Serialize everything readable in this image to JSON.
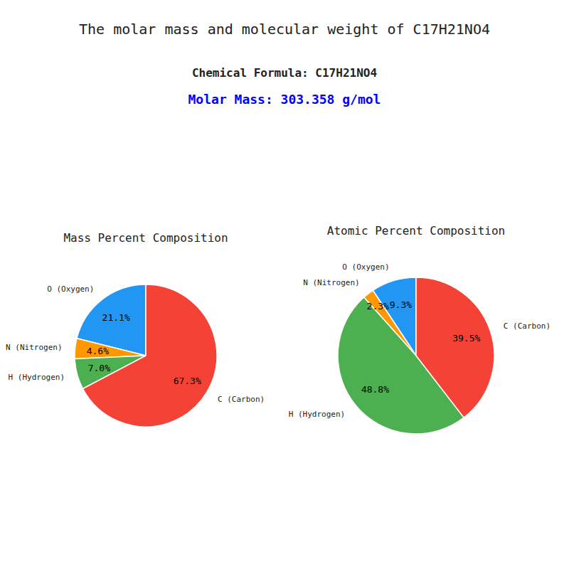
{
  "title": "The molar mass and molecular weight of C17H21NO4",
  "subtitle": "Chemical Formula: C17H21NO4",
  "annotations": [
    {
      "text": "Molar Mass: 303.358 g/mol",
      "color": "blue"
    }
  ],
  "chart_data": [
    {
      "type": "pie",
      "title": "Mass Percent Composition",
      "categories": [
        "O (Oxygen)",
        "N (Nitrogen)",
        "H (Hydrogen)",
        "C (Carbon)"
      ],
      "values": [
        21.1,
        4.6,
        7.0,
        67.3
      ],
      "value_labels": [
        "21.1%",
        "4.6%",
        "7.0%",
        "67.3%"
      ],
      "colors": [
        "#2196F3",
        "#FF9800",
        "#4CAF50",
        "#F44336"
      ],
      "data_labels": true
    },
    {
      "type": "pie",
      "title": "Atomic Percent Composition",
      "categories": [
        "O (Oxygen)",
        "N (Nitrogen)",
        "H (Hydrogen)",
        "C (Carbon)"
      ],
      "values": [
        9.3,
        2.3,
        48.8,
        39.5
      ],
      "value_labels": [
        "9.3%",
        "2.3%",
        "48.8%",
        "39.5%"
      ],
      "colors": [
        "#2196F3",
        "#FF9800",
        "#4CAF50",
        "#F44336"
      ],
      "data_labels": true
    }
  ]
}
